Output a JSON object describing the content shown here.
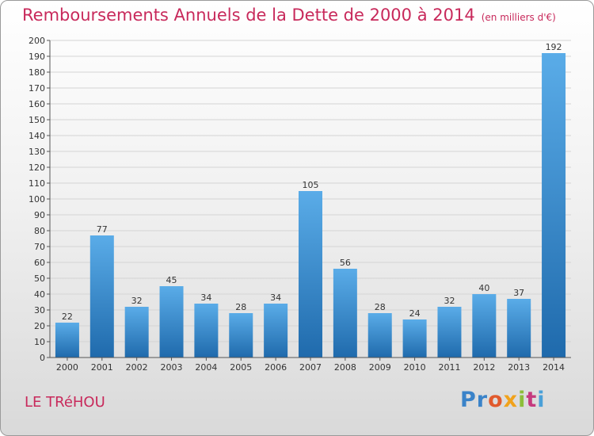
{
  "header": {
    "title": "Remboursements Annuels de la Dette de 2000 à 2014",
    "subtitle": "(en milliers d'€)"
  },
  "footer": {
    "commune": "LE TRéHOU",
    "logo": [
      "Pr",
      "o",
      "x",
      "i",
      "t",
      "i"
    ]
  },
  "colors": {
    "accent": "#c8295b",
    "bar_top": "#5aace8",
    "bar_bottom": "#1f6aac"
  },
  "chart_data": {
    "type": "bar",
    "categories": [
      "2000",
      "2001",
      "2002",
      "2003",
      "2004",
      "2005",
      "2006",
      "2007",
      "2008",
      "2009",
      "2010",
      "2011",
      "2012",
      "2013",
      "2014"
    ],
    "values": [
      22,
      77,
      32,
      45,
      34,
      28,
      34,
      105,
      56,
      28,
      24,
      32,
      40,
      37,
      192
    ],
    "ylim": [
      0,
      200
    ],
    "ytick_step": 10,
    "grid": true
  }
}
